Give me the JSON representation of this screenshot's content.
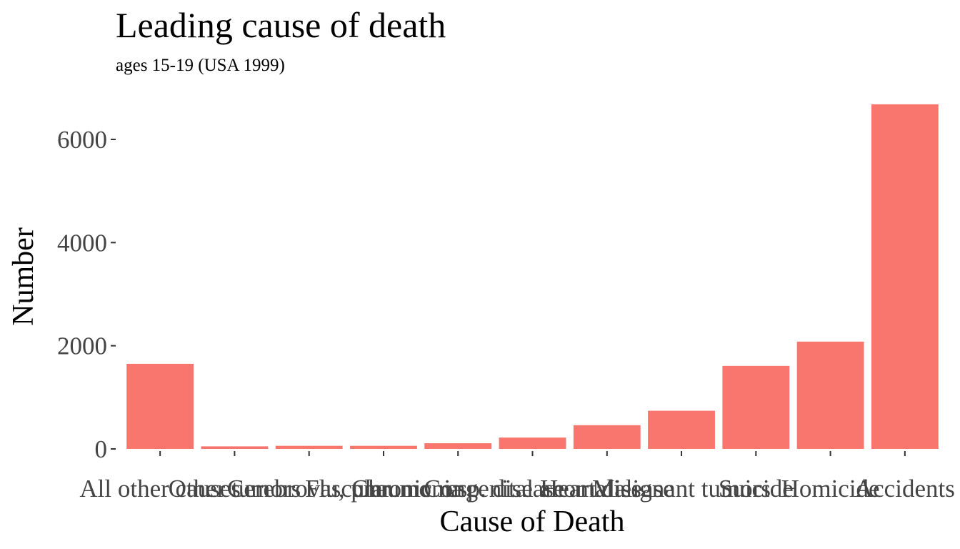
{
  "chart_data": {
    "type": "bar",
    "title": "Leading cause of death",
    "subtitle": "ages 15-19 (USA 1999)",
    "xlabel": "Cause of Death",
    "ylabel": "Number",
    "categories": [
      "All other causes",
      "Other tumors",
      "Cerebrovascular",
      "Flu, pneumonia",
      "Chronic resp. disease",
      "Congenital anomalies",
      "Heart disease",
      "Malignant tumors",
      "Suicide",
      "Homicide",
      "Accidents"
    ],
    "values": [
      1650,
      50,
      60,
      60,
      110,
      220,
      460,
      740,
      1610,
      2080,
      6680
    ],
    "yticks": [
      0,
      2000,
      4000,
      6000
    ],
    "ylim": [
      0,
      6700
    ],
    "grid": false,
    "bar_color": "#F8766D"
  }
}
